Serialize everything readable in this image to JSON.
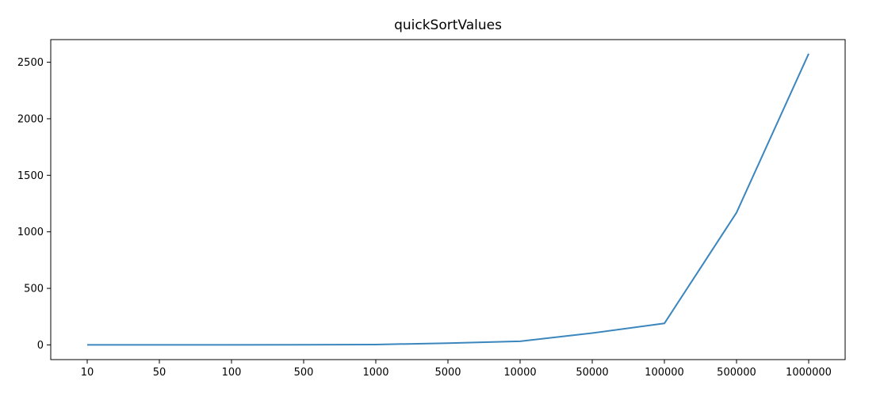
{
  "chart_data": {
    "type": "line",
    "title": "quickSortValues",
    "xlabel": "",
    "ylabel": "",
    "categories": [
      "10",
      "50",
      "100",
      "500",
      "1000",
      "5000",
      "10000",
      "50000",
      "100000",
      "500000",
      "1000000"
    ],
    "series": [
      {
        "values": [
          0,
          0,
          0,
          1,
          3,
          16,
          32,
          105,
          190,
          1170,
          2575
        ],
        "color": "#3b86bd"
      }
    ],
    "ylim": [
      -130,
      2700
    ],
    "yticks": [
      0,
      500,
      1000,
      1500,
      2000,
      2500
    ],
    "grid": false,
    "legend": "none"
  }
}
